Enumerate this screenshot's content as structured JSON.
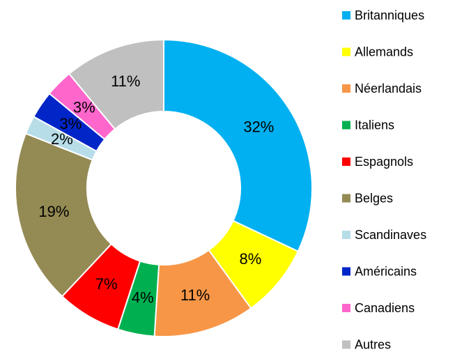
{
  "chart_data": {
    "type": "donut",
    "categories": [
      "Britanniques",
      "Allemands",
      "Néerlandais",
      "Italiens",
      "Espagnols",
      "Belges",
      "Scandinaves",
      "Américains",
      "Canadiens",
      "Autres"
    ],
    "values": [
      32,
      8,
      11,
      4,
      7,
      19,
      2,
      3,
      3,
      11
    ],
    "value_labels": [
      "32%",
      "8%",
      "11%",
      "4%",
      "7%",
      "19%",
      "2%",
      "3%",
      "3%",
      "11%"
    ],
    "colors": [
      "#00b0f0",
      "#ffff00",
      "#f79646",
      "#00b050",
      "#ff0000",
      "#948a54",
      "#b7dde8",
      "#0026c8",
      "#ff66cc",
      "#c0c0c0"
    ],
    "legend": "right"
  }
}
